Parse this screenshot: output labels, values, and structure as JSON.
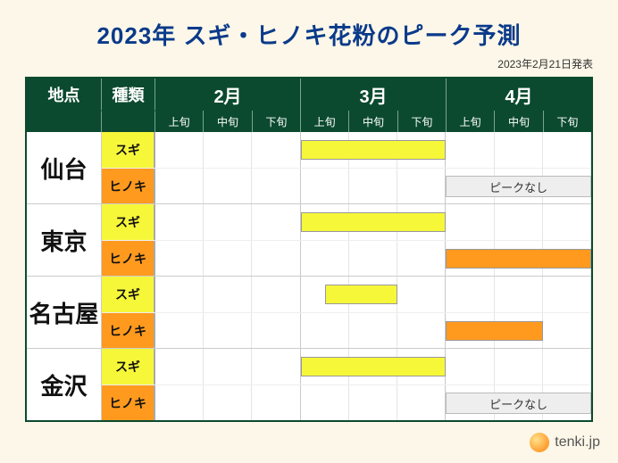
{
  "title": "2023年 スギ・ヒノキ花粉のピーク予測",
  "published": "2023年2月21日発表",
  "footer_brand": "tenki.jp",
  "colors": {
    "header_bg": "#0b4a2f",
    "title_color": "#0a3a8a",
    "page_bg": "#fcf7e8",
    "sugi": "#f7f73a",
    "hinoki": "#ff9a1f",
    "nopeak_bg": "#eeeeee"
  },
  "type": "gantt-table",
  "headers": {
    "location": "地点",
    "kind": "種類",
    "months": [
      "2月",
      "3月",
      "4月"
    ],
    "subperiods": [
      "上旬",
      "中旬",
      "下旬"
    ]
  },
  "kinds": {
    "sugi": {
      "label": "スギ",
      "color": "#f7f73a"
    },
    "hinoki": {
      "label": "ヒノキ",
      "color": "#ff9a1f"
    }
  },
  "nopeak_label": "ピークなし",
  "grid_total_units": 9,
  "locations": [
    {
      "name": "仙台",
      "rows": [
        {
          "kind": "sugi",
          "bar": {
            "start": 3,
            "end": 6
          }
        },
        {
          "kind": "hinoki",
          "nopeak": {
            "start": 6,
            "end": 9
          }
        }
      ]
    },
    {
      "name": "東京",
      "rows": [
        {
          "kind": "sugi",
          "bar": {
            "start": 3,
            "end": 6
          }
        },
        {
          "kind": "hinoki",
          "bar": {
            "start": 6,
            "end": 9
          }
        }
      ]
    },
    {
      "name": "名古屋",
      "rows": [
        {
          "kind": "sugi",
          "bar": {
            "start": 3.5,
            "end": 5
          }
        },
        {
          "kind": "hinoki",
          "bar": {
            "start": 6,
            "end": 8
          }
        }
      ]
    },
    {
      "name": "金沢",
      "rows": [
        {
          "kind": "sugi",
          "bar": {
            "start": 3,
            "end": 6
          }
        },
        {
          "kind": "hinoki",
          "nopeak": {
            "start": 6,
            "end": 9
          }
        }
      ]
    }
  ]
}
